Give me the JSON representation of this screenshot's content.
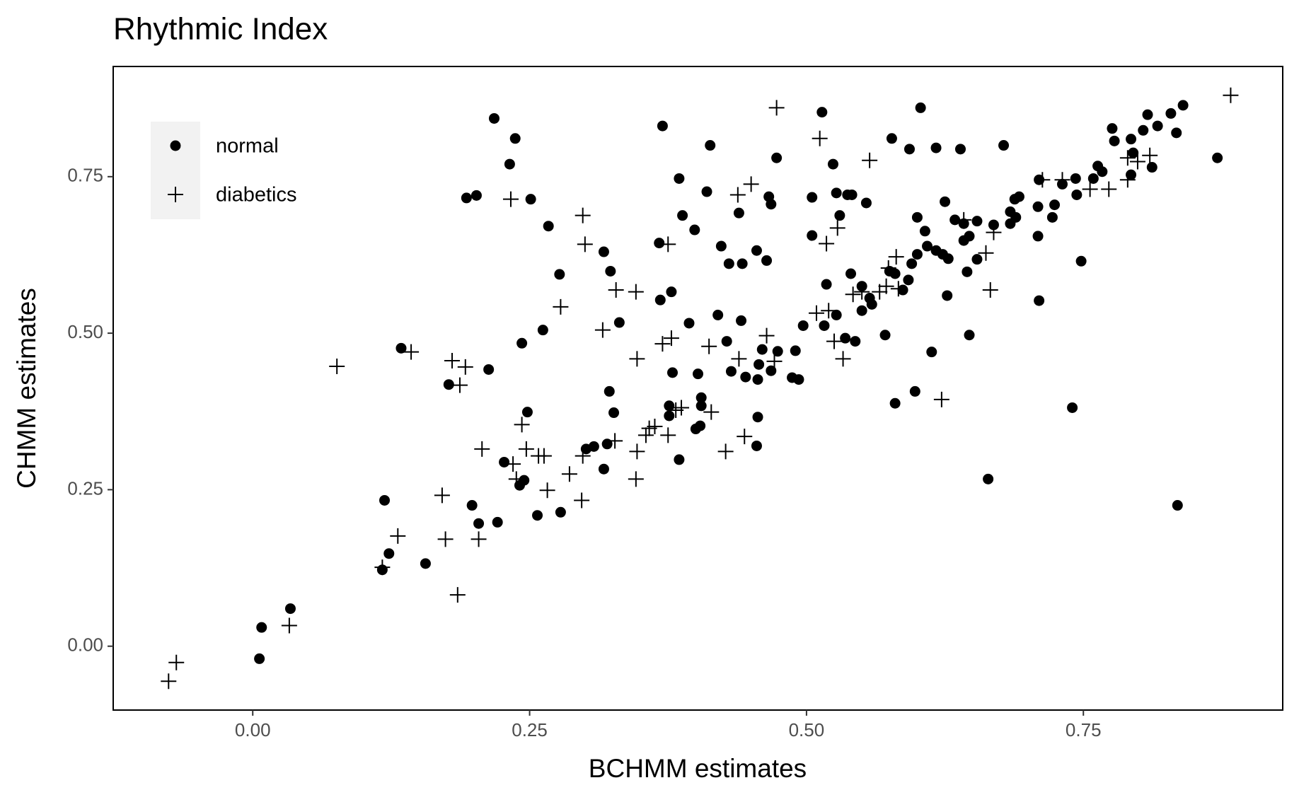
{
  "chart_data": {
    "type": "scatter",
    "title": "Rhythmic Index",
    "x_label": "BCHMM estimates",
    "y_label": "CHMM estimates",
    "xlim": [
      -0.126,
      0.93
    ],
    "ylim": [
      -0.102,
      0.926
    ],
    "xticks": [
      {
        "value": 0,
        "label": "0.00"
      },
      0.25,
      {
        "value": 0.5,
        "label": "0.50"
      },
      0.75
    ],
    "yticks": [
      {
        "value": 0,
        "label": "0.00"
      },
      0.25,
      {
        "value": 0.5,
        "label": "0.50"
      },
      0.75
    ],
    "legend": "top-left",
    "series": [
      {
        "name": "normal",
        "marker": "circle",
        "color": "#000000",
        "x": [
          0.218,
          0.237,
          0.232,
          0.193,
          0.202,
          0.251,
          0.267,
          0.277,
          0.243,
          0.262,
          0.213,
          0.134,
          0.177,
          0.248,
          0.227,
          0.245,
          0.241,
          0.198,
          0.204,
          0.221,
          0.257,
          0.278,
          0.119,
          0.123,
          0.117,
          0.156,
          0.034,
          0.008,
          0.006,
          0.37,
          0.413,
          0.385,
          0.388,
          0.399,
          0.41,
          0.423,
          0.43,
          0.442,
          0.439,
          0.455,
          0.464,
          0.466,
          0.468,
          0.473,
          0.367,
          0.378,
          0.368,
          0.323,
          0.317,
          0.331,
          0.394,
          0.42,
          0.441,
          0.322,
          0.326,
          0.379,
          0.402,
          0.405,
          0.405,
          0.428,
          0.432,
          0.445,
          0.457,
          0.456,
          0.46,
          0.468,
          0.474,
          0.376,
          0.376,
          0.385,
          0.4,
          0.404,
          0.32,
          0.317,
          0.301,
          0.308,
          0.456,
          0.455,
          0.487,
          0.493,
          0.49,
          0.497,
          0.514,
          0.524,
          0.505,
          0.527,
          0.537,
          0.541,
          0.554,
          0.53,
          0.505,
          0.603,
          0.577,
          0.593,
          0.617,
          0.639,
          0.678,
          0.518,
          0.54,
          0.55,
          0.516,
          0.527,
          0.535,
          0.544,
          0.55,
          0.557,
          0.559,
          0.571,
          0.575,
          0.58,
          0.587,
          0.592,
          0.6,
          0.595,
          0.607,
          0.609,
          0.6,
          0.617,
          0.623,
          0.628,
          0.625,
          0.634,
          0.642,
          0.642,
          0.647,
          0.654,
          0.645,
          0.654,
          0.627,
          0.613,
          0.58,
          0.598,
          0.647,
          0.664,
          0.669,
          0.684,
          0.688,
          0.692,
          0.684,
          0.689,
          0.709,
          0.71,
          0.709,
          0.71,
          0.722,
          0.724,
          0.748,
          0.74,
          0.744,
          0.731,
          0.743,
          0.759,
          0.763,
          0.767,
          0.776,
          0.778,
          0.793,
          0.795,
          0.793,
          0.804,
          0.808,
          0.817,
          0.812,
          0.829,
          0.84,
          0.834,
          0.871,
          0.835
        ],
        "values": [
          0.843,
          0.811,
          0.77,
          0.716,
          0.72,
          0.714,
          0.671,
          0.594,
          0.484,
          0.505,
          0.442,
          0.476,
          0.418,
          0.374,
          0.294,
          0.265,
          0.257,
          0.225,
          0.196,
          0.198,
          0.209,
          0.214,
          0.233,
          0.148,
          0.122,
          0.132,
          0.06,
          0.03,
          -0.02,
          0.831,
          0.8,
          0.747,
          0.688,
          0.665,
          0.726,
          0.639,
          0.611,
          0.611,
          0.692,
          0.632,
          0.616,
          0.718,
          0.706,
          0.78,
          0.644,
          0.566,
          0.553,
          0.599,
          0.63,
          0.517,
          0.516,
          0.529,
          0.52,
          0.407,
          0.373,
          0.437,
          0.435,
          0.397,
          0.384,
          0.487,
          0.439,
          0.43,
          0.45,
          0.426,
          0.474,
          0.44,
          0.471,
          0.384,
          0.368,
          0.298,
          0.347,
          0.352,
          0.323,
          0.283,
          0.315,
          0.319,
          0.366,
          0.32,
          0.429,
          0.426,
          0.472,
          0.512,
          0.853,
          0.77,
          0.717,
          0.724,
          0.721,
          0.721,
          0.708,
          0.688,
          0.656,
          0.86,
          0.811,
          0.794,
          0.796,
          0.794,
          0.8,
          0.578,
          0.595,
          0.575,
          0.512,
          0.529,
          0.492,
          0.487,
          0.536,
          0.556,
          0.546,
          0.497,
          0.599,
          0.595,
          0.569,
          0.585,
          0.626,
          0.611,
          0.663,
          0.639,
          0.685,
          0.632,
          0.626,
          0.619,
          0.71,
          0.681,
          0.675,
          0.648,
          0.655,
          0.679,
          0.598,
          0.618,
          0.56,
          0.47,
          0.388,
          0.407,
          0.497,
          0.267,
          0.673,
          0.694,
          0.714,
          0.718,
          0.675,
          0.685,
          0.655,
          0.552,
          0.702,
          0.745,
          0.685,
          0.705,
          0.615,
          0.381,
          0.721,
          0.738,
          0.747,
          0.747,
          0.767,
          0.758,
          0.827,
          0.807,
          0.81,
          0.788,
          0.753,
          0.824,
          0.849,
          0.831,
          0.765,
          0.851,
          0.864,
          0.82,
          0.78,
          0.225
        ]
      },
      {
        "name": "diabetics",
        "marker": "plus",
        "color": "#000000",
        "x": [
          -0.076,
          -0.069,
          0.033,
          0.076,
          0.117,
          0.131,
          0.143,
          0.171,
          0.174,
          0.185,
          0.18,
          0.192,
          0.187,
          0.204,
          0.207,
          0.233,
          0.235,
          0.238,
          0.243,
          0.247,
          0.258,
          0.263,
          0.266,
          0.278,
          0.286,
          0.298,
          0.3,
          0.297,
          0.298,
          0.316,
          0.328,
          0.327,
          0.346,
          0.347,
          0.347,
          0.346,
          0.355,
          0.358,
          0.363,
          0.375,
          0.375,
          0.37,
          0.378,
          0.382,
          0.387,
          0.412,
          0.414,
          0.427,
          0.438,
          0.45,
          0.439,
          0.444,
          0.464,
          0.471,
          0.473,
          0.512,
          0.509,
          0.52,
          0.518,
          0.528,
          0.525,
          0.533,
          0.557,
          0.542,
          0.55,
          0.566,
          0.572,
          0.574,
          0.581,
          0.583,
          0.622,
          0.642,
          0.662,
          0.666,
          0.669,
          0.713,
          0.731,
          0.756,
          0.773,
          0.79,
          0.79,
          0.81,
          0.799,
          0.883
        ],
        "values": [
          -0.056,
          -0.026,
          0.033,
          0.447,
          0.126,
          0.176,
          0.47,
          0.241,
          0.171,
          0.082,
          0.456,
          0.446,
          0.417,
          0.171,
          0.315,
          0.714,
          0.291,
          0.267,
          0.354,
          0.315,
          0.304,
          0.304,
          0.249,
          0.542,
          0.275,
          0.688,
          0.642,
          0.233,
          0.304,
          0.505,
          0.569,
          0.328,
          0.566,
          0.459,
          0.311,
          0.267,
          0.337,
          0.348,
          0.351,
          0.642,
          0.337,
          0.483,
          0.492,
          0.377,
          0.381,
          0.479,
          0.374,
          0.311,
          0.721,
          0.738,
          0.459,
          0.335,
          0.496,
          0.455,
          0.86,
          0.811,
          0.532,
          0.536,
          0.643,
          0.668,
          0.487,
          0.459,
          0.776,
          0.562,
          0.566,
          0.566,
          0.575,
          0.604,
          0.622,
          0.571,
          0.394,
          0.681,
          0.628,
          0.569,
          0.661,
          0.745,
          0.745,
          0.73,
          0.73,
          0.745,
          0.78,
          0.784,
          0.774,
          0.88
        ]
      }
    ]
  }
}
